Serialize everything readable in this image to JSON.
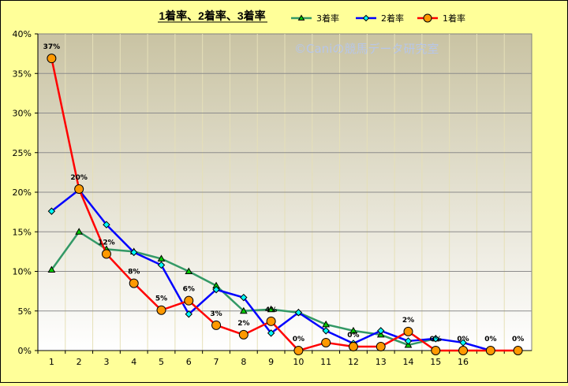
{
  "chart_data": {
    "type": "line",
    "title": "1着率、2着率、3着率",
    "watermark": "©Caniの競馬データ研究室",
    "categories": [
      "1",
      "2",
      "3",
      "4",
      "5",
      "6",
      "7",
      "8",
      "9",
      "10",
      "11",
      "12",
      "13",
      "14",
      "15",
      "16",
      "",
      ""
    ],
    "ylim": [
      0,
      40
    ],
    "yticks": [
      "0%",
      "5%",
      "10%",
      "15%",
      "20%",
      "25%",
      "30%",
      "35%",
      "40%"
    ],
    "grid": true,
    "legend_position": "top",
    "series": [
      {
        "name": "3着率",
        "color": "#339966",
        "marker": "triangle",
        "marker_fill": "#00cc00",
        "values": [
          10.2,
          15.0,
          12.8,
          12.5,
          11.6,
          10.0,
          8.2,
          5.0,
          5.2,
          4.8,
          3.3,
          2.5,
          2.0,
          0.7,
          1.5,
          null,
          null,
          null
        ]
      },
      {
        "name": "2着率",
        "color": "#0000ff",
        "marker": "diamond",
        "marker_fill": "#00ffff",
        "values": [
          17.6,
          20.3,
          15.9,
          12.4,
          10.8,
          4.6,
          7.7,
          6.7,
          2.2,
          4.8,
          2.5,
          0.9,
          2.5,
          1.2,
          1.5,
          1.0,
          0,
          null
        ]
      },
      {
        "name": "1着率",
        "color": "#ff0000",
        "marker": "circle",
        "marker_fill": "#ff9900",
        "values": [
          36.9,
          20.4,
          12.2,
          8.5,
          5.1,
          6.3,
          3.2,
          2.0,
          3.7,
          0,
          1.0,
          0.5,
          0.5,
          2.4,
          0,
          0,
          0,
          0
        ]
      }
    ],
    "data_labels": [
      {
        "series": 2,
        "index": 0,
        "text": "37%"
      },
      {
        "series": 2,
        "index": 1,
        "text": "20%"
      },
      {
        "series": 2,
        "index": 2,
        "text": "12%"
      },
      {
        "series": 2,
        "index": 3,
        "text": "8%"
      },
      {
        "series": 2,
        "index": 4,
        "text": "5%"
      },
      {
        "series": 2,
        "index": 5,
        "text": "6%"
      },
      {
        "series": 2,
        "index": 6,
        "text": "3%"
      },
      {
        "series": 2,
        "index": 7,
        "text": "2%"
      },
      {
        "series": 2,
        "index": 8,
        "text": "4%"
      },
      {
        "series": 2,
        "index": 9,
        "text": "0%"
      },
      {
        "series": 2,
        "index": 11,
        "text": "0%"
      },
      {
        "series": 2,
        "index": 13,
        "text": "2%"
      },
      {
        "series": 2,
        "index": 14,
        "text": "0%"
      },
      {
        "series": 2,
        "index": 15,
        "text": "0%"
      },
      {
        "series": 2,
        "index": 16,
        "text": "0%"
      },
      {
        "series": 2,
        "index": 17,
        "text": "0%"
      }
    ]
  }
}
